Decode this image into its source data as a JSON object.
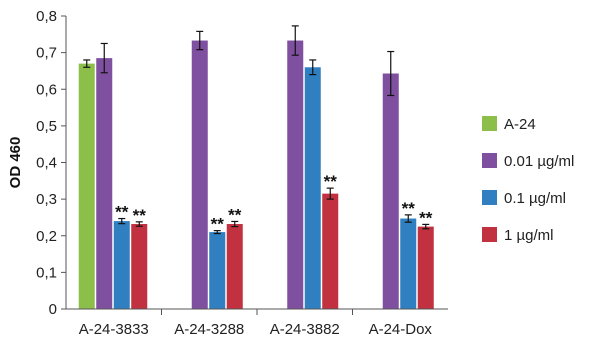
{
  "chart_data": {
    "type": "bar",
    "title": "",
    "xlabel": "",
    "ylabel": "OD 460",
    "ylim": [
      0,
      0.8
    ],
    "yticks": [
      "0",
      "0,1",
      "0,2",
      "0,3",
      "0,4",
      "0,5",
      "0,6",
      "0,7",
      "0,8"
    ],
    "grid": false,
    "legend_position": "right",
    "categories": [
      "A-24-3833",
      "A-24-3288",
      "A-24-3882",
      "A-24-Dox"
    ],
    "series": [
      {
        "name": "A-24",
        "color": "#8bbf4a",
        "values": [
          0.67,
          null,
          null,
          null
        ],
        "errors": [
          0.01,
          null,
          null,
          null
        ],
        "annotations": [
          "",
          "",
          "",
          ""
        ]
      },
      {
        "name": "0.01 µg/ml",
        "color": "#7f4fa0",
        "values": [
          0.685,
          0.733,
          0.733,
          0.643
        ],
        "errors": [
          0.04,
          0.025,
          0.04,
          0.06
        ],
        "annotations": [
          "",
          "",
          "",
          ""
        ]
      },
      {
        "name": "0.1 µg/ml",
        "color": "#2f7fc1",
        "values": [
          0.24,
          0.21,
          0.66,
          0.247
        ],
        "errors": [
          0.007,
          0.004,
          0.02,
          0.01
        ],
        "annotations": [
          "**",
          "**",
          "",
          "**"
        ]
      },
      {
        "name": "1 µg/ml",
        "color": "#c1313f",
        "values": [
          0.232,
          0.232,
          0.315,
          0.225
        ],
        "errors": [
          0.006,
          0.007,
          0.015,
          0.006
        ],
        "annotations": [
          "**",
          "**",
          "**",
          "**"
        ]
      }
    ]
  }
}
